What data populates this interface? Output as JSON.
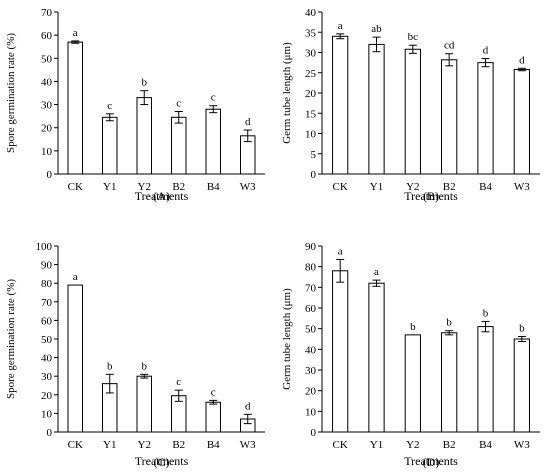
{
  "chart_data": [
    {
      "type": "bar",
      "panel_label": "(A)",
      "xlabel": "Treatments",
      "ylabel": "Spore germination rate (%)",
      "ylim": [
        0,
        70
      ],
      "yticks": [
        0,
        10,
        20,
        30,
        40,
        50,
        60,
        70
      ],
      "categories": [
        "CK",
        "Y1",
        "Y2",
        "B2",
        "B4",
        "W3"
      ],
      "values": [
        57,
        24.5,
        33,
        24.5,
        28,
        16.5
      ],
      "errors": [
        0.5,
        1.5,
        3,
        2.5,
        1.5,
        2.5
      ],
      "letters": [
        "a",
        "c",
        "b",
        "c",
        "c",
        "d"
      ]
    },
    {
      "type": "bar",
      "panel_label": "(B)",
      "xlabel": "Treatments",
      "ylabel": "Germ tube length (μm)",
      "ylim": [
        0,
        40
      ],
      "yticks": [
        0,
        5,
        10,
        15,
        20,
        25,
        30,
        35,
        40
      ],
      "categories": [
        "CK",
        "Y1",
        "Y2",
        "B2",
        "B4",
        "W3"
      ],
      "values": [
        34,
        32,
        30.8,
        28.2,
        27.5,
        25.8
      ],
      "errors": [
        0.6,
        1.8,
        1,
        1.5,
        1,
        0.3
      ],
      "letters": [
        "a",
        "ab",
        "bc",
        "cd",
        "d",
        "d"
      ]
    },
    {
      "type": "bar",
      "panel_label": "(C)",
      "xlabel": "Treatments",
      "ylabel": "Spore germination rate (%)",
      "ylim": [
        0,
        100
      ],
      "yticks": [
        0,
        10,
        20,
        30,
        40,
        50,
        60,
        70,
        80,
        90,
        100
      ],
      "categories": [
        "CK",
        "Y1",
        "Y2",
        "B2",
        "B4",
        "W3"
      ],
      "values": [
        79,
        26,
        30,
        19.5,
        16,
        7
      ],
      "errors": [
        0,
        5,
        1,
        3,
        1,
        2.5
      ],
      "letters": [
        "a",
        "b",
        "b",
        "c",
        "c",
        "d"
      ]
    },
    {
      "type": "bar",
      "panel_label": "(D)",
      "xlabel": "Treatments",
      "ylabel": "Germ tube length (μm)",
      "ylim": [
        0,
        90
      ],
      "yticks": [
        0,
        10,
        20,
        30,
        40,
        50,
        60,
        70,
        80,
        90
      ],
      "categories": [
        "CK",
        "Y1",
        "Y2",
        "B2",
        "B4",
        "W3"
      ],
      "values": [
        78,
        72,
        47,
        48,
        51,
        45
      ],
      "errors": [
        5.5,
        1.5,
        0,
        1,
        2.5,
        1.2
      ],
      "letters": [
        "a",
        "a",
        "b",
        "b",
        "b",
        "b"
      ]
    }
  ]
}
